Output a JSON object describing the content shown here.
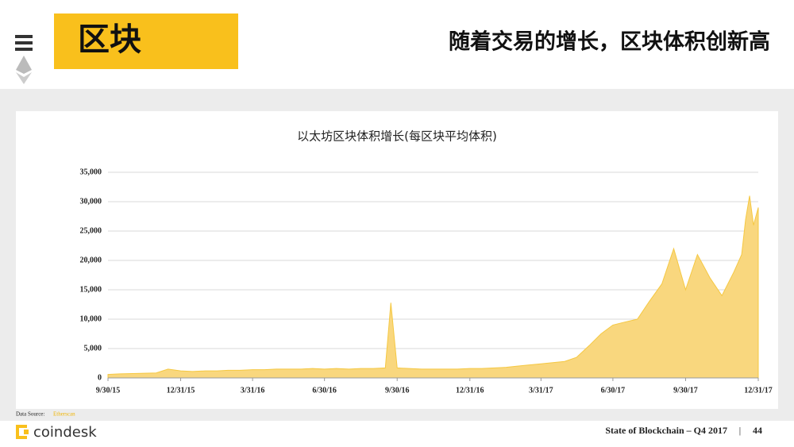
{
  "header": {
    "title": "区块",
    "subtitle": "随着交易的增长，区块体积创新高"
  },
  "chart_data": {
    "type": "area",
    "title": "以太坊区块体积增长(每区块平均体积)",
    "color": "#f9d77e",
    "line_color": "#f5c842",
    "x": [
      "9/30/15",
      "10/15/15",
      "10/31/15",
      "11/15/15",
      "11/30/15",
      "12/15/15",
      "12/31/15",
      "1/15/16",
      "1/31/16",
      "2/15/16",
      "2/29/16",
      "3/15/16",
      "3/31/16",
      "4/15/16",
      "4/30/16",
      "5/15/16",
      "5/31/16",
      "6/15/16",
      "6/30/16",
      "7/15/16",
      "7/31/16",
      "8/15/16",
      "8/31/16",
      "9/15/16",
      "9/22/16",
      "9/30/16",
      "10/15/16",
      "10/31/16",
      "11/15/16",
      "11/30/16",
      "12/15/16",
      "12/31/16",
      "1/15/17",
      "1/31/17",
      "2/15/17",
      "2/28/17",
      "3/15/17",
      "3/31/17",
      "4/15/17",
      "4/30/17",
      "5/15/17",
      "5/31/17",
      "6/15/17",
      "6/30/17",
      "7/15/17",
      "7/31/17",
      "8/15/17",
      "8/31/17",
      "9/15/17",
      "9/30/17",
      "10/15/17",
      "10/31/17",
      "11/15/17",
      "11/30/17",
      "12/10/17",
      "12/15/17",
      "12/20/17",
      "12/25/17",
      "12/31/17"
    ],
    "values": [
      600,
      700,
      750,
      800,
      850,
      1500,
      1200,
      1100,
      1200,
      1200,
      1300,
      1300,
      1400,
      1400,
      1500,
      1500,
      1500,
      1600,
      1500,
      1600,
      1500,
      1600,
      1600,
      1700,
      12800,
      1700,
      1600,
      1500,
      1500,
      1500,
      1500,
      1600,
      1600,
      1700,
      1800,
      2000,
      2200,
      2400,
      2600,
      2800,
      3500,
      5500,
      7500,
      9000,
      9500,
      10000,
      13000,
      16000,
      22000,
      15000,
      21000,
      17000,
      14000,
      18000,
      21000,
      27000,
      31000,
      26000,
      29000
    ],
    "xlim": [
      "9/30/15",
      "12/31/17"
    ],
    "xticks": [
      "9/30/15",
      "12/31/15",
      "3/31/16",
      "6/30/16",
      "9/30/16",
      "12/31/16",
      "3/31/17",
      "6/30/17",
      "9/30/17",
      "12/31/17"
    ],
    "ylim": [
      0,
      35000
    ],
    "yticks": [
      0,
      {
        "value": 5000,
        "label": "5,000"
      },
      {
        "value": 10000,
        "label": "10,000"
      },
      {
        "value": 15000,
        "label": "15,000"
      },
      {
        "value": 20000,
        "label": "20,000"
      },
      {
        "value": 25000,
        "label": "25,000"
      },
      {
        "value": 30000,
        "label": "30,000"
      },
      {
        "value": 35000,
        "label": "35,000"
      }
    ],
    "grid": true
  },
  "footer": {
    "source_label": "Data Source:",
    "source_name": "Etherscan",
    "brand": "coindesk",
    "report": "State of Blockchain – Q4 2017",
    "separator": "|",
    "page": "44"
  }
}
